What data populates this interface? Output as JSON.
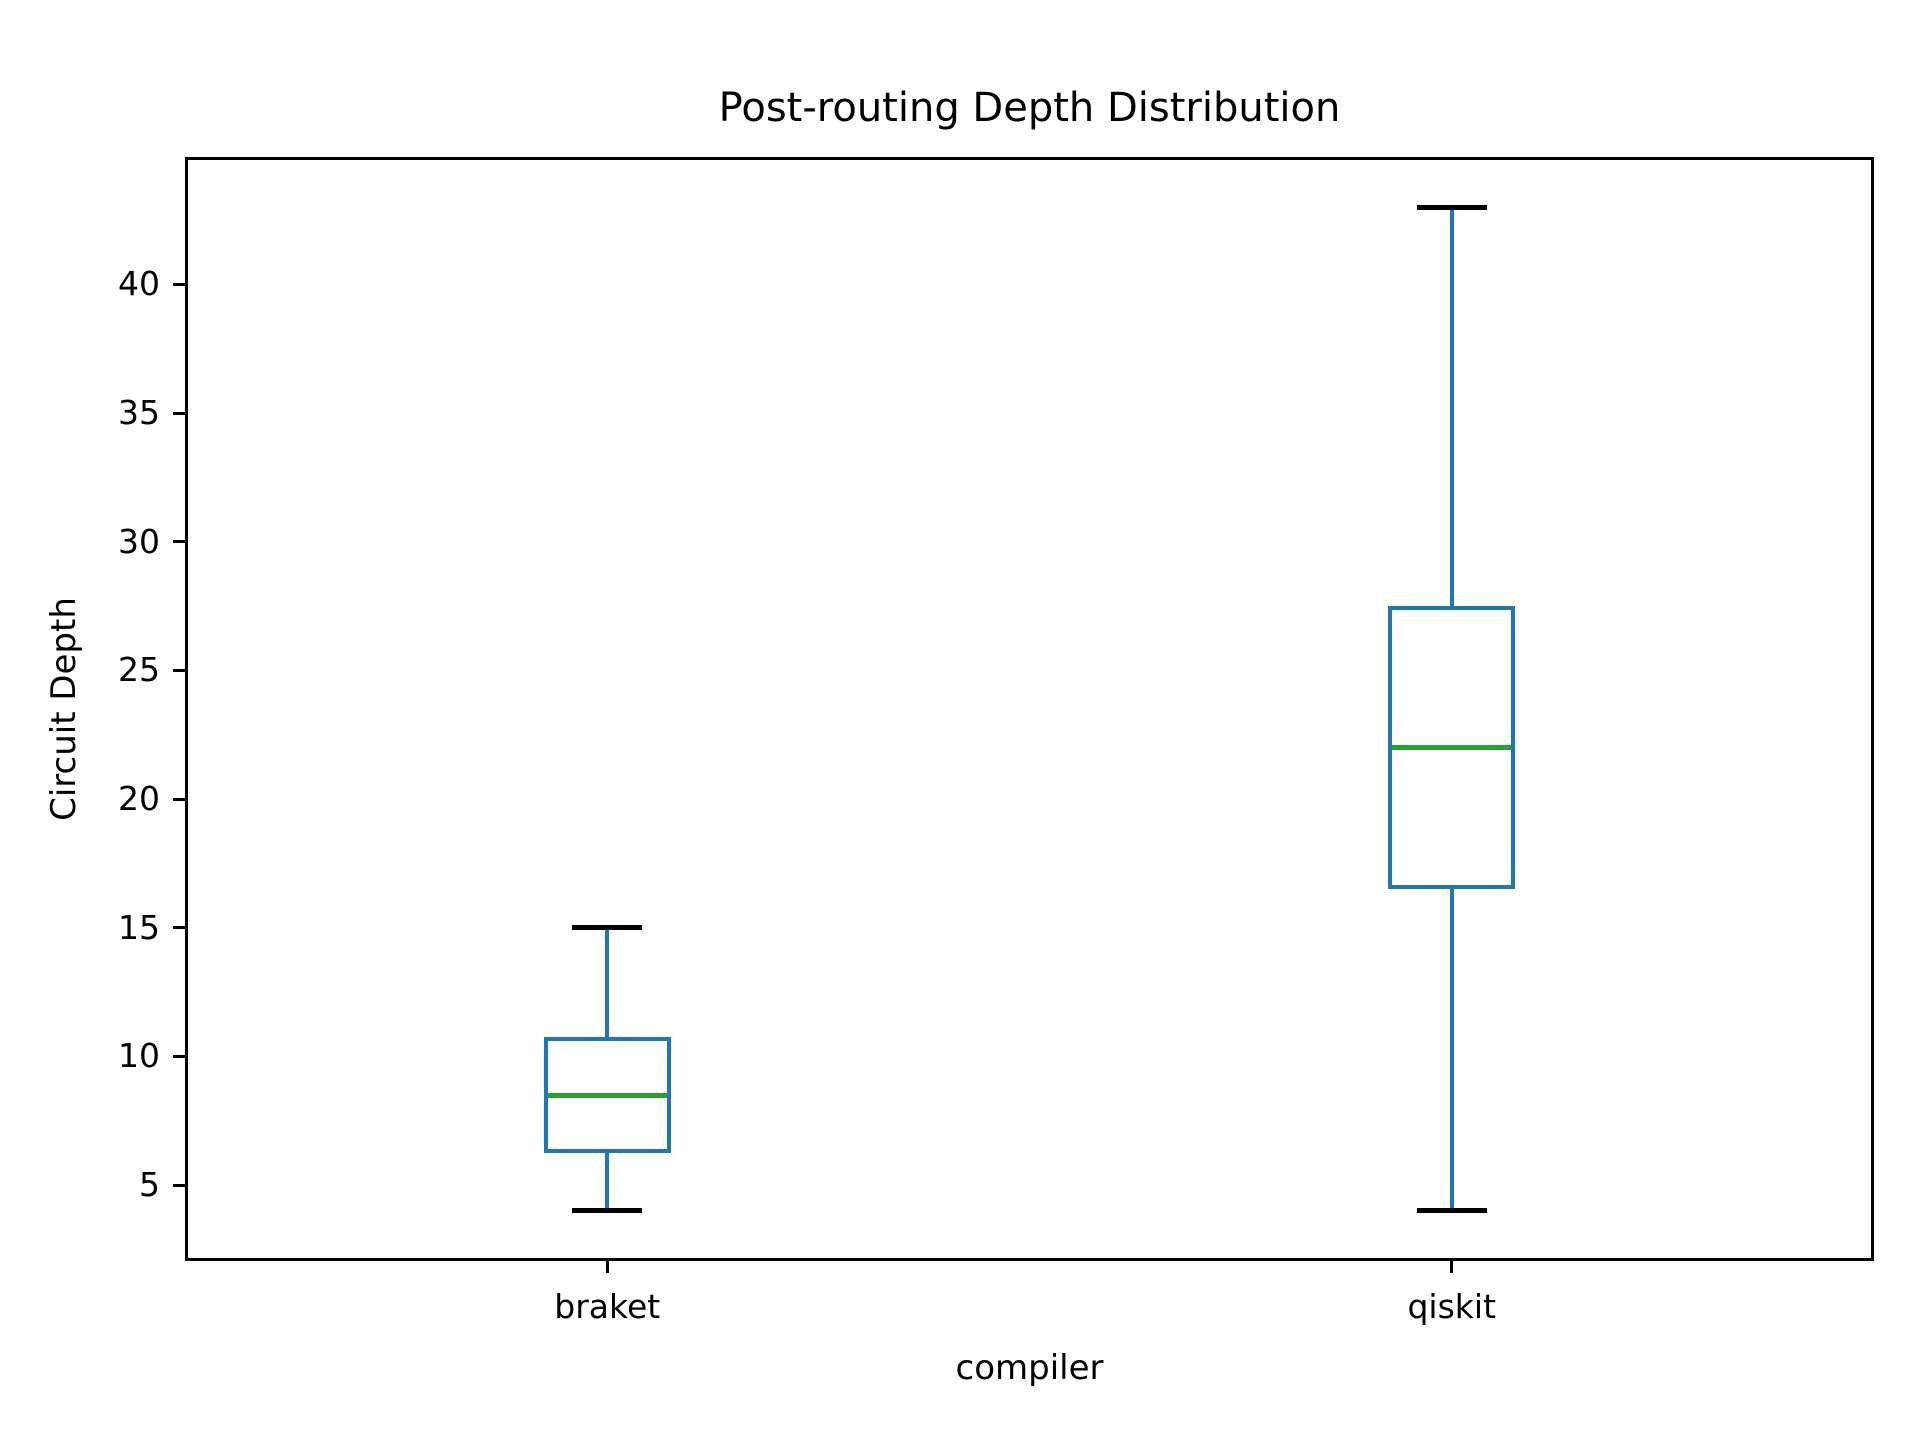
{
  "chart_data": {
    "type": "box",
    "title": "Post-routing Depth Distribution",
    "xlabel": "compiler",
    "ylabel": "Circuit Depth",
    "categories": [
      "braket",
      "qiskit"
    ],
    "series": [
      {
        "name": "braket",
        "whislo": 4,
        "q1": 6.25,
        "med": 8.5,
        "q3": 10.75,
        "whishi": 15
      },
      {
        "name": "qiskit",
        "whislo": 4,
        "q1": 16.5,
        "med": 22,
        "q3": 27.5,
        "whishi": 43
      }
    ],
    "yticks": [
      5,
      10,
      15,
      20,
      25,
      30,
      35,
      40
    ],
    "ylim": [
      2.05,
      44.95
    ],
    "grid": false,
    "legend": "none",
    "colors": {
      "box": "#1f77b4",
      "whisker": "#1f77b4",
      "median": "#2ca02c",
      "cap": "#000000",
      "axis": "#000000",
      "background": "#ffffff"
    }
  }
}
